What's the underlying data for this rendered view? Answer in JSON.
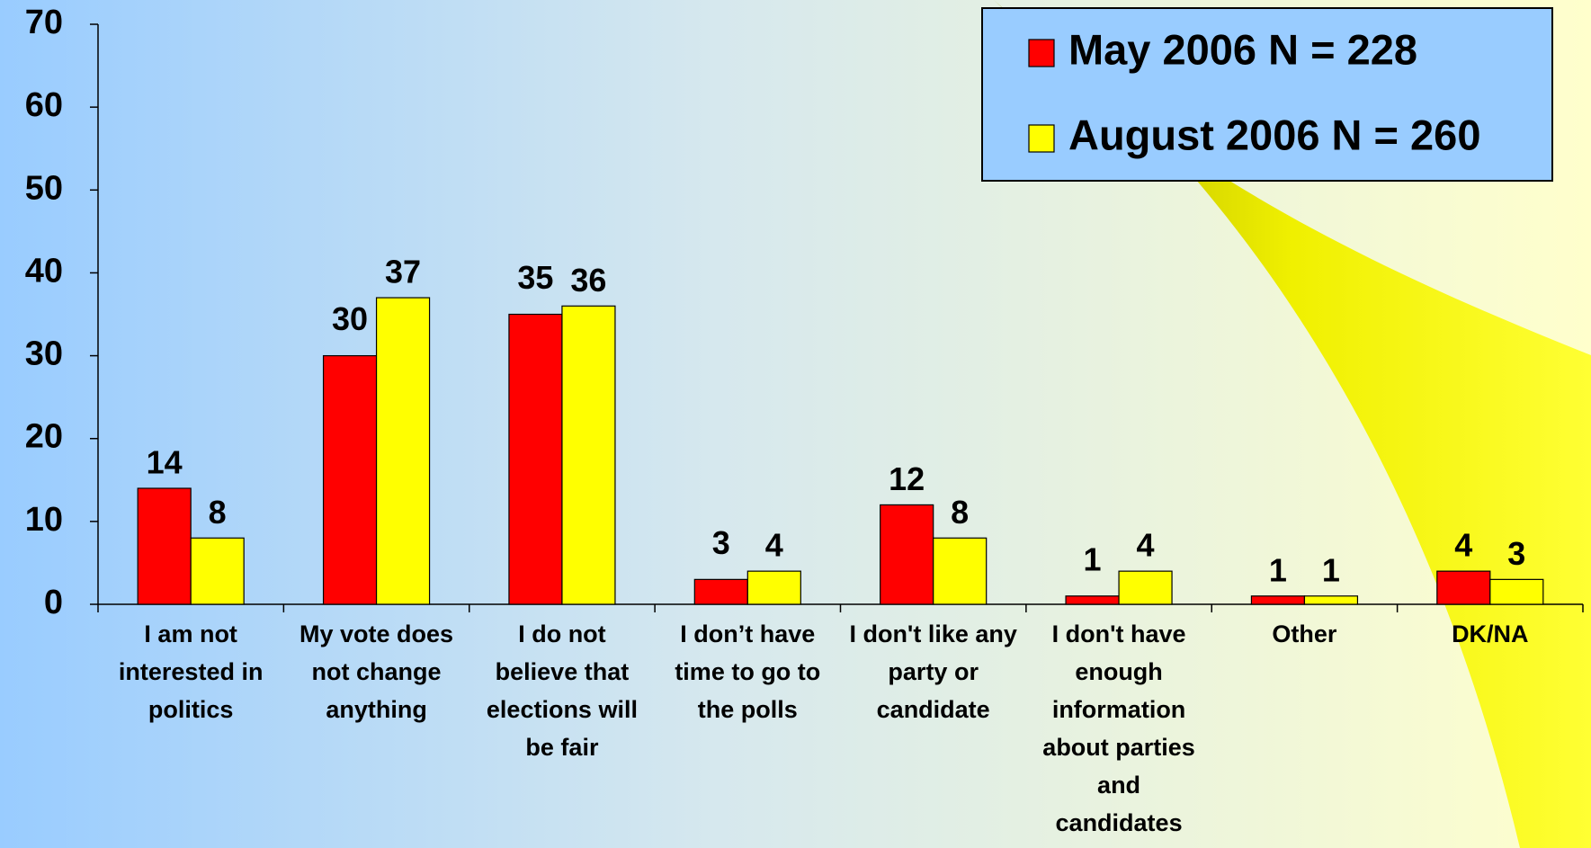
{
  "chart_data": {
    "type": "bar",
    "categories": [
      "I am not interested in politics",
      "My vote does not change anything",
      "I do not believe that elections will be fair",
      "I don’t have time to go to the polls",
      "I don't like any party or candidate",
      "I don't have enough information about parties and candidates",
      "Other",
      "DK/NA"
    ],
    "series": [
      {
        "name": "May 2006 N = 228",
        "color": "#ff0000",
        "values": [
          14,
          30,
          35,
          3,
          12,
          1,
          1,
          4
        ]
      },
      {
        "name": "August 2006 N = 260",
        "color": "#ffff00",
        "values": [
          8,
          37,
          36,
          4,
          8,
          4,
          1,
          3
        ]
      }
    ],
    "ylim": [
      0,
      70
    ],
    "yticks": [
      0,
      10,
      20,
      30,
      40,
      50,
      60,
      70
    ],
    "grid": false,
    "legend": "top-right"
  }
}
